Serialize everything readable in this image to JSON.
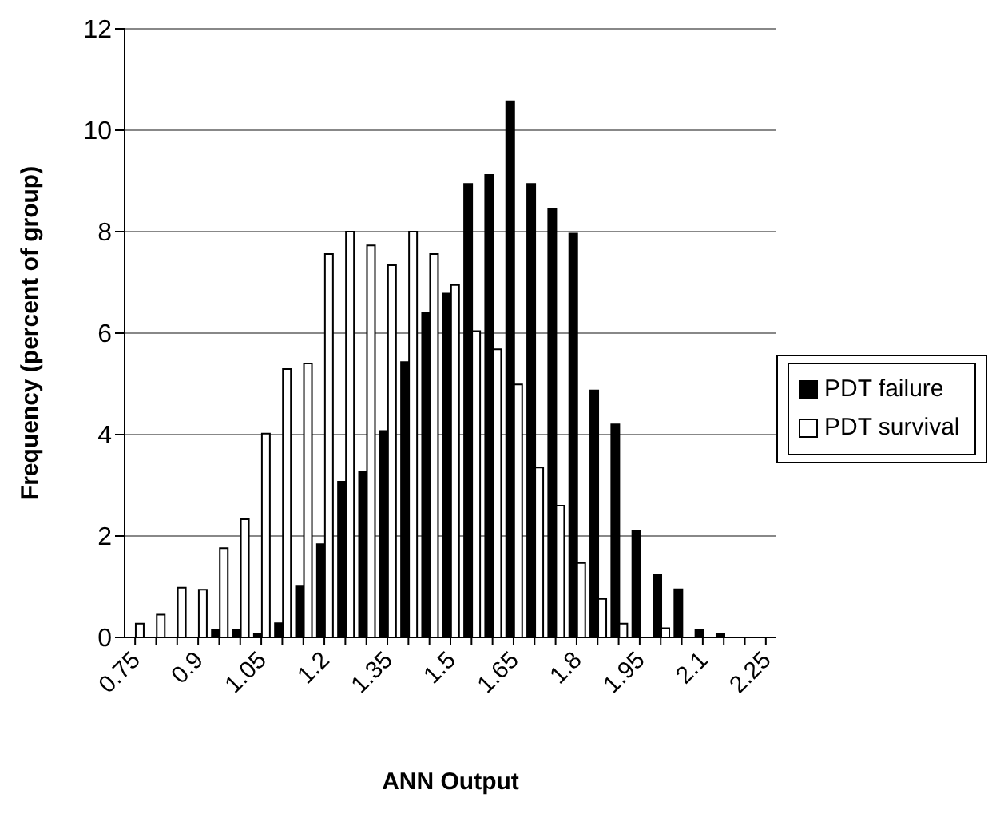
{
  "chart_data": {
    "type": "bar",
    "xlabel": "ANN Output",
    "ylabel": "Frequency (percent of group)",
    "categories": [
      "0.75",
      null,
      null,
      "0.9",
      null,
      null,
      "1.05",
      null,
      null,
      "1.2",
      null,
      null,
      "1.35",
      null,
      null,
      "1.5",
      null,
      null,
      "1.65",
      null,
      null,
      "1.8",
      null,
      null,
      "1.95",
      null,
      null,
      "2.1",
      null,
      null,
      "2.25"
    ],
    "series": [
      {
        "name": "PDT failure",
        "color": "#000000",
        "values": [
          0,
          0,
          0,
          0,
          0.15,
          0.15,
          0.07,
          0.28,
          1.02,
          1.84,
          3.07,
          3.27,
          4.07,
          5.43,
          6.4,
          6.78,
          8.94,
          9.12,
          10.57,
          8.94,
          8.45,
          7.96,
          4.87,
          4.2,
          2.11,
          1.23,
          0.95,
          0.15,
          0.07,
          0,
          0
        ]
      },
      {
        "name": "PDT survival",
        "color": "#ffffff",
        "values": [
          0.27,
          0.45,
          0.98,
          0.94,
          1.76,
          2.33,
          4.02,
          5.29,
          5.4,
          7.56,
          8.0,
          7.73,
          7.34,
          8.0,
          7.56,
          6.95,
          6.04,
          5.68,
          4.99,
          3.35,
          2.6,
          1.47,
          0.76,
          0.27,
          0,
          0.18,
          0,
          0,
          0,
          0,
          0
        ]
      }
    ],
    "ylim": [
      0,
      12
    ],
    "yticks": [
      0,
      2,
      4,
      6,
      8,
      10,
      12
    ],
    "grid": "y",
    "legend": "right"
  }
}
